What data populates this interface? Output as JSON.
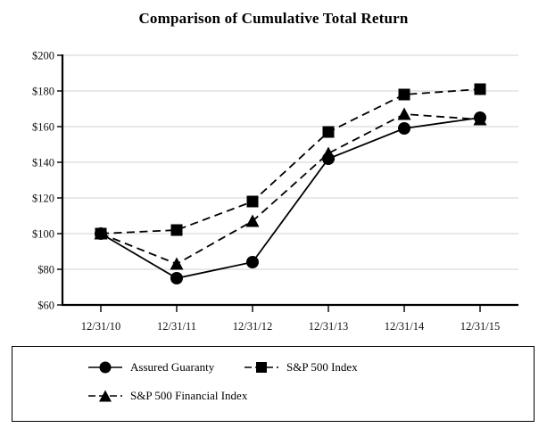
{
  "page": {
    "background": "#ffffff"
  },
  "chart_data": {
    "type": "line",
    "title": "Comparison of Cumulative Total Return",
    "categories": [
      "12/31/10",
      "12/31/11",
      "12/31/12",
      "12/31/13",
      "12/31/14",
      "12/31/15"
    ],
    "series": [
      {
        "name": "Assured Guaranty",
        "marker": "circle",
        "line_style": "solid",
        "color": "#000000",
        "values": [
          100,
          75,
          84,
          142,
          159,
          165
        ]
      },
      {
        "name": "S&P 500 Index",
        "marker": "square",
        "line_style": "dashed",
        "color": "#000000",
        "values": [
          100,
          102,
          118,
          157,
          178,
          181
        ]
      },
      {
        "name": "S&P 500 Financial Index",
        "marker": "triangle",
        "line_style": "dashed",
        "color": "#000000",
        "values": [
          100,
          83,
          107,
          145,
          167,
          164
        ]
      }
    ],
    "xlabel": "",
    "ylabel": "",
    "ylim": [
      60,
      200
    ],
    "y_tick_step": 20,
    "y_tick_labels": [
      "$200",
      "$180",
      "$160",
      "$140",
      "$120",
      "$100",
      "$80",
      "$60"
    ],
    "grid": true,
    "gridline_color": "#d9d9d9",
    "axis_color": "#000000",
    "text_color": "#111111",
    "legend_position": "bottom-box"
  }
}
